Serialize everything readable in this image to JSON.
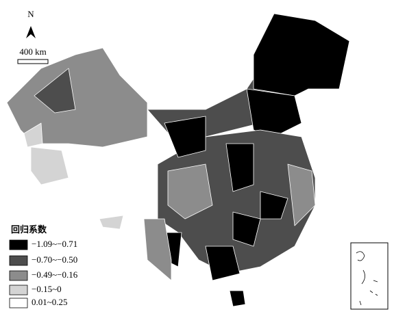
{
  "north_arrow": {
    "label": "N"
  },
  "scale_bar": {
    "label": "400 km"
  },
  "legend": {
    "title": "回归系数",
    "items": [
      {
        "label": "−1.09~−0.71",
        "color": "#000000"
      },
      {
        "label": "−0.70~−0.50",
        "color": "#4d4d4d"
      },
      {
        "label": "−0.49~−0.16",
        "color": "#8c8c8c"
      },
      {
        "label": "−0.15~0",
        "color": "#d4d4d4"
      },
      {
        "label": "0.01~0.25",
        "color": "#ffffff"
      }
    ]
  }
}
